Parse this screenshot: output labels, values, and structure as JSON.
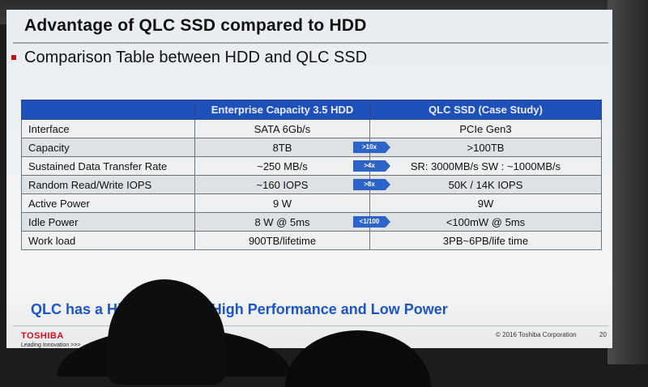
{
  "slide": {
    "title": "Advantage of QLC SSD compared to HDD",
    "subtitle": "Comparison Table between HDD and QLC SSD",
    "summary": "QLC has a High Capacity, High Performance and Low Power",
    "footer": {
      "logo": "TOSHIBA",
      "tagline": "Leading Innovation >>>",
      "copyright": "© 2016 Toshiba Corporation",
      "page_number": "20"
    },
    "colors": {
      "header_blue": "#1f4fb8",
      "summary_blue": "#1e55c6",
      "logo_red": "#d01020"
    }
  },
  "table": {
    "headers": [
      "",
      "Enterprise Capacity 3.5 HDD",
      "QLC SSD (Case Study)"
    ],
    "rows": [
      {
        "label": "Interface",
        "hdd": "SATA 6Gb/s",
        "arrow": "",
        "ssd": "PCIe Gen3"
      },
      {
        "label": "Capacity",
        "hdd": "8TB",
        "arrow": ">10x",
        "ssd": ">100TB"
      },
      {
        "label": "Sustained Data Transfer Rate",
        "hdd": "~250 MB/s",
        "arrow": ">4x",
        "ssd": "SR: 3000MB/s  SW : ~1000MB/s"
      },
      {
        "label": "Random Read/Write IOPS",
        "hdd": "~160 IOPS",
        "arrow": ">8x",
        "ssd": "50K / 14K IOPS"
      },
      {
        "label": "Active Power",
        "hdd": "9 W",
        "arrow": "",
        "ssd": "9W"
      },
      {
        "label": "Idle Power",
        "hdd": "8 W @ 5ms",
        "arrow": "<1/100",
        "ssd": "<100mW @ 5ms"
      },
      {
        "label": "Work load",
        "hdd": "900TB/lifetime",
        "arrow": "",
        "ssd": "3PB~6PB/life time"
      }
    ]
  }
}
